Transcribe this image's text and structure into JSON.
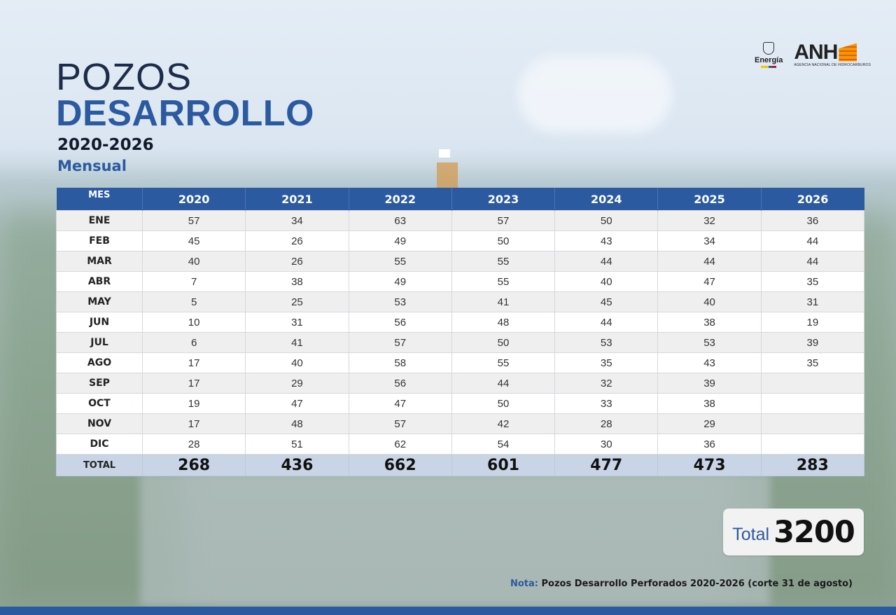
{
  "header": {
    "title_line1": "POZOS",
    "title_line2": "DESARROLLO",
    "years": "2020-2026",
    "subtitle": "Mensual"
  },
  "logos": {
    "energia_label": "Energía",
    "anh_label": "ANH",
    "anh_subtitle": "AGENCIA NACIONAL DE HIDROCARBUROS"
  },
  "colors": {
    "primary_blue": "#2c5aa0",
    "header_text": "#ffffff",
    "total_row_bg": "#c9d5e6"
  },
  "chart_data": {
    "type": "table",
    "title": "POZOS DESARROLLO 2020-2026 Mensual",
    "row_header": "MES",
    "total_label": "TOTAL",
    "columns": [
      "2020",
      "2021",
      "2022",
      "2023",
      "2024",
      "2025",
      "2026"
    ],
    "rows": [
      {
        "mes": "ENE",
        "values": [
          "57",
          "34",
          "63",
          "57",
          "50",
          "32",
          "36"
        ]
      },
      {
        "mes": "FEB",
        "values": [
          "45",
          "26",
          "49",
          "50",
          "43",
          "34",
          "44"
        ]
      },
      {
        "mes": "MAR",
        "values": [
          "40",
          "26",
          "55",
          "55",
          "44",
          "44",
          "44"
        ]
      },
      {
        "mes": "ABR",
        "values": [
          "7",
          "38",
          "49",
          "55",
          "40",
          "47",
          "35"
        ]
      },
      {
        "mes": "MAY",
        "values": [
          "5",
          "25",
          "53",
          "41",
          "45",
          "40",
          "31"
        ]
      },
      {
        "mes": "JUN",
        "values": [
          "10",
          "31",
          "56",
          "48",
          "44",
          "38",
          "19"
        ]
      },
      {
        "mes": "JUL",
        "values": [
          "6",
          "41",
          "57",
          "50",
          "53",
          "53",
          "39"
        ]
      },
      {
        "mes": "AGO",
        "values": [
          "17",
          "40",
          "58",
          "55",
          "35",
          "43",
          "35"
        ]
      },
      {
        "mes": "SEP",
        "values": [
          "17",
          "29",
          "56",
          "44",
          "32",
          "39",
          ""
        ]
      },
      {
        "mes": "OCT",
        "values": [
          "19",
          "47",
          "47",
          "50",
          "33",
          "38",
          ""
        ]
      },
      {
        "mes": "NOV",
        "values": [
          "17",
          "48",
          "57",
          "42",
          "28",
          "29",
          ""
        ]
      },
      {
        "mes": "DIC",
        "values": [
          "28",
          "51",
          "62",
          "54",
          "30",
          "36",
          ""
        ]
      }
    ],
    "totals": [
      "268",
      "436",
      "662",
      "601",
      "477",
      "473",
      "283"
    ]
  },
  "summary": {
    "label": "Total",
    "value": "3200"
  },
  "note": {
    "prefix": "Nota:",
    "text": "Pozos Desarrollo Perforados 2020-2026 (corte 31 de agosto)"
  }
}
